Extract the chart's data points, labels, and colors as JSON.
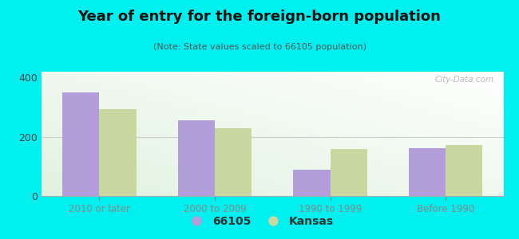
{
  "title": "Year of entry for the foreign-born population",
  "subtitle": "(Note: State values scaled to 66105 population)",
  "categories": [
    "2010 or later",
    "2000 to 2009",
    "1990 to 1999",
    "Before 1990"
  ],
  "values_66105": [
    350,
    255,
    88,
    162
  ],
  "values_kansas": [
    293,
    228,
    158,
    172
  ],
  "color_66105": "#b39ddb",
  "color_kansas": "#c8d8a0",
  "background_color": "#00f0f0",
  "ylim": [
    0,
    420
  ],
  "yticks": [
    0,
    200,
    400
  ],
  "legend_label_1": "66105",
  "legend_label_2": "Kansas",
  "bar_width": 0.32,
  "watermark": "City-Data.com"
}
